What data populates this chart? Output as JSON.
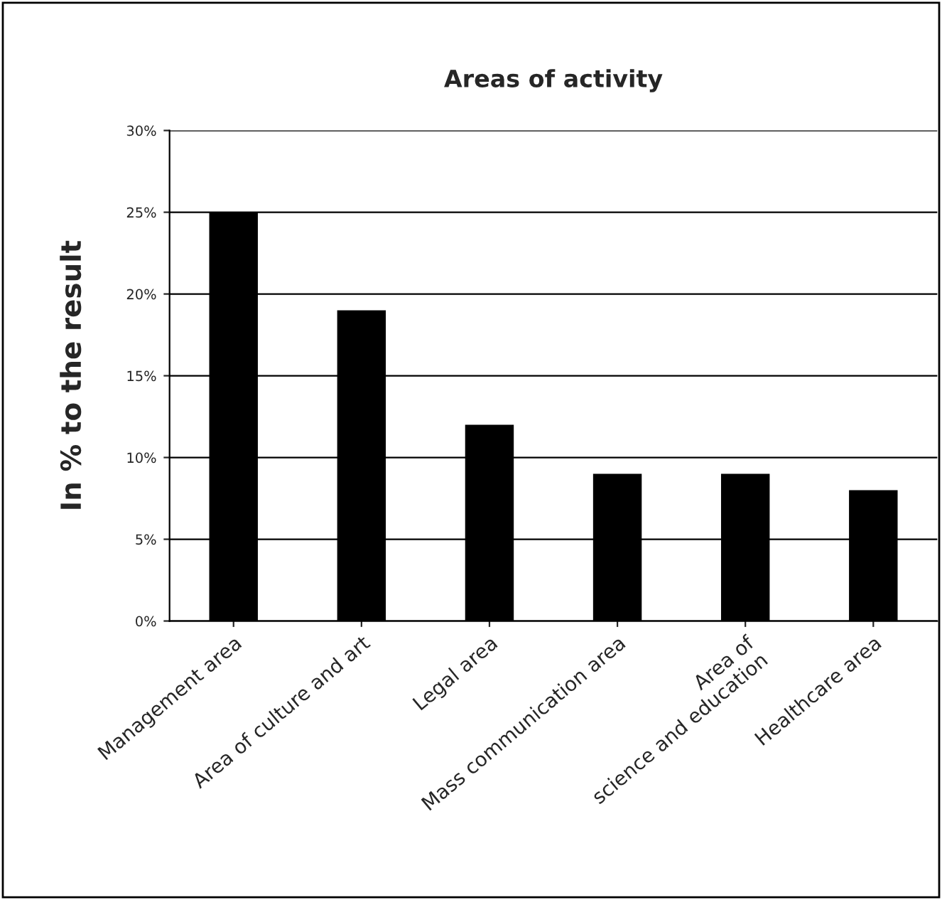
{
  "chart_data": {
    "type": "bar",
    "title": "Areas of activity",
    "ylabel": "In % to the result",
    "categories": [
      "Management area",
      "Area of culture and art",
      "Legal area",
      "Mass communication area",
      "Area of\nscience and education",
      "Healthcare area"
    ],
    "values": [
      25,
      19,
      12,
      9,
      9,
      8
    ],
    "color": "#000000",
    "ylim": [
      0,
      30
    ],
    "yticks": [
      {
        "value": 0,
        "label": "0%"
      },
      {
        "value": 5,
        "label": "5%"
      },
      {
        "value": 10,
        "label": "10%"
      },
      {
        "value": 15,
        "label": "15%"
      },
      {
        "value": 20,
        "label": "20%"
      },
      {
        "value": 25,
        "label": "25%"
      },
      {
        "value": 30,
        "label": "30%"
      }
    ],
    "grid": "y"
  }
}
